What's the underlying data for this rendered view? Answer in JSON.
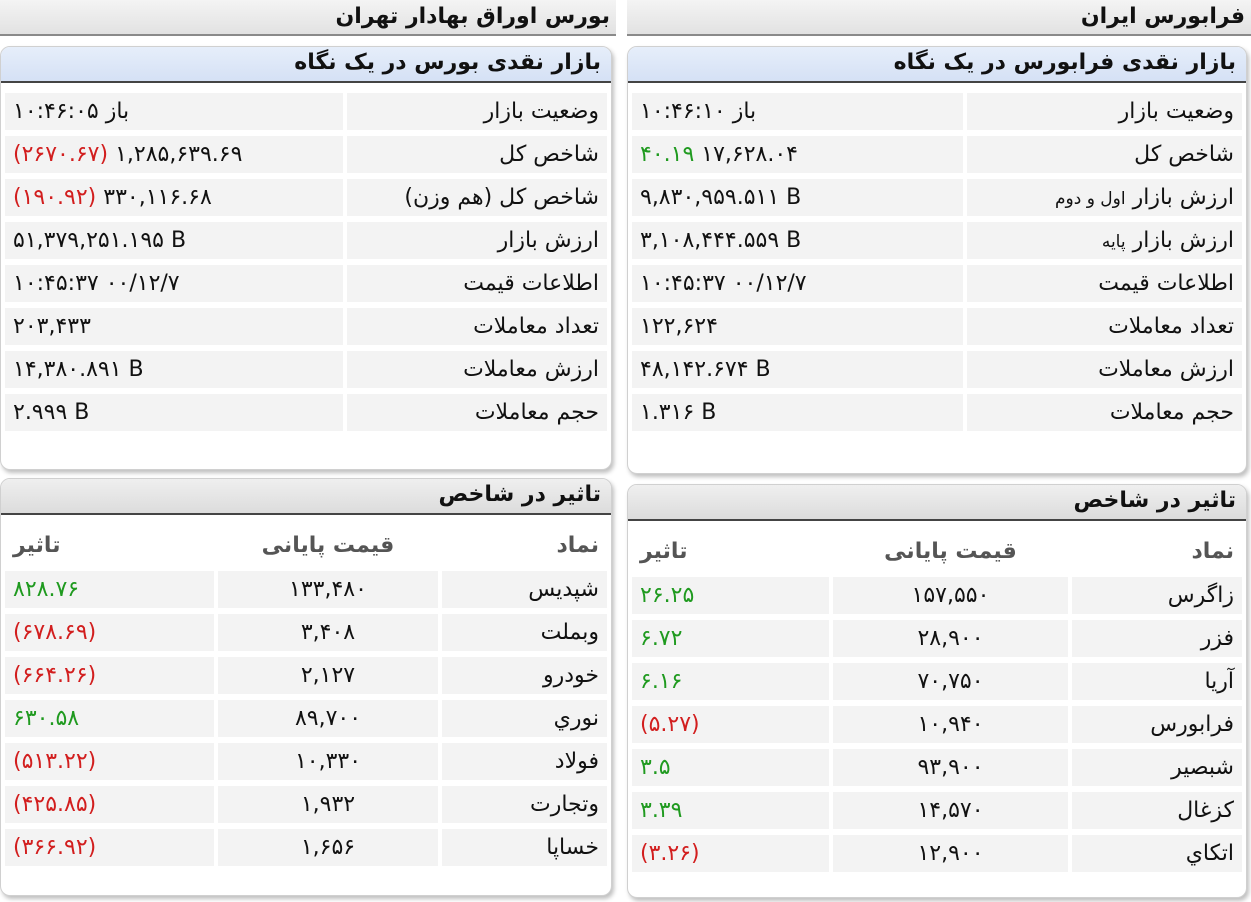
{
  "tehran": {
    "header": "بورس اوراق بهادار تهران",
    "summary_title": "بازار نقدی بورس در یک نگاه",
    "summary": {
      "status_label": "وضعیت بازار",
      "status_value": "باز ۱۰:۴۶:۰۵",
      "index_label": "شاخص کل",
      "index_value": "۱,۲۸۵,۶۳۹.۶۹",
      "index_change": "(۲۶۷۰.۶۷)",
      "eq_index_label": "شاخص کل (هم وزن)",
      "eq_index_value": "۳۳۰,۱۱۶.۶۸",
      "eq_index_change": "(۱۹۰.۹۲)",
      "market_value_label": "ارزش بازار",
      "market_value": "۵۱,۳۷۹,۲۵۱.۱۹۵ B",
      "price_info_label": "اطلاعات قیمت",
      "price_info_value": "۱۰:۴۵:۳۷ ۰۰/۱۲/۷",
      "trades_count_label": "تعداد معاملات",
      "trades_count": "۲۰۳,۴۳۳",
      "trades_value_label": "ارزش معاملات",
      "trades_value": "۱۴,۳۸۰.۸۹۱ B",
      "trades_volume_label": "حجم معاملات",
      "trades_volume": "۲.۹۹۹ B"
    },
    "impact_title": "تاثیر در شاخص",
    "impact_headers": {
      "symbol": "نماد",
      "price": "قیمت پایانی",
      "impact": "تاثیر"
    },
    "impact_rows": [
      {
        "symbol": "شپدیس",
        "price": "۱۳۳,۴۸۰",
        "impact": "۸۲۸.۷۶",
        "dir": "pos"
      },
      {
        "symbol": "وبملت",
        "price": "۳,۴۰۸",
        "impact": "(۶۷۸.۶۹)",
        "dir": "neg"
      },
      {
        "symbol": "خودرو",
        "price": "۲,۱۲۷",
        "impact": "(۶۶۴.۲۶)",
        "dir": "neg"
      },
      {
        "symbol": "نوري",
        "price": "۸۹,۷۰۰",
        "impact": "۶۳۰.۵۸",
        "dir": "pos"
      },
      {
        "symbol": "فولاد",
        "price": "۱۰,۳۳۰",
        "impact": "(۵۱۳.۲۲)",
        "dir": "neg"
      },
      {
        "symbol": "وتجارت",
        "price": "۱,۹۳۲",
        "impact": "(۴۲۵.۸۵)",
        "dir": "neg"
      },
      {
        "symbol": "خساپا",
        "price": "۱,۶۵۶",
        "impact": "(۳۶۶.۹۲)",
        "dir": "neg"
      }
    ]
  },
  "farabourse": {
    "header": "فرابورس ایران",
    "summary_title": "بازار نقدی فرابورس در یک نگاه",
    "summary": {
      "status_label": "وضعیت بازار",
      "status_value": "باز ۱۰:۴۶:۱۰",
      "index_label": "شاخص کل",
      "index_value": "۱۷,۶۲۸.۰۴",
      "index_change": "۴۰.۱۹",
      "mv12_label_main": "ارزش بازار",
      "mv12_label_sub": "اول و دوم",
      "mv12_value": "۹,۸۳۰,۹۵۹.۵۱۱ B",
      "mvbase_label_main": "ارزش بازار",
      "mvbase_label_sub": "پایه",
      "mvbase_value": "۳,۱۰۸,۴۴۴.۵۵۹ B",
      "price_info_label": "اطلاعات قیمت",
      "price_info_value": "۱۰:۴۵:۳۷ ۰۰/۱۲/۷",
      "trades_count_label": "تعداد معاملات",
      "trades_count": "۱۲۲,۶۲۴",
      "trades_value_label": "ارزش معاملات",
      "trades_value": "۴۸,۱۴۲.۶۷۴ B",
      "trades_volume_label": "حجم معاملات",
      "trades_volume": "۱.۳۱۶ B"
    },
    "impact_title": "تاثیر در شاخص",
    "impact_headers": {
      "symbol": "نماد",
      "price": "قیمت پایانی",
      "impact": "تاثیر"
    },
    "impact_rows": [
      {
        "symbol": "زاگرس",
        "price": "۱۵۷,۵۵۰",
        "impact": "۲۶.۲۵",
        "dir": "pos"
      },
      {
        "symbol": "فزر",
        "price": "۲۸,۹۰۰",
        "impact": "۶.۷۲",
        "dir": "pos"
      },
      {
        "symbol": "آريا",
        "price": "۷۰,۷۵۰",
        "impact": "۶.۱۶",
        "dir": "pos"
      },
      {
        "symbol": "فرابورس",
        "price": "۱۰,۹۴۰",
        "impact": "(۵.۲۷)",
        "dir": "neg"
      },
      {
        "symbol": "شبصير",
        "price": "۹۳,۹۰۰",
        "impact": "۳.۵",
        "dir": "pos"
      },
      {
        "symbol": "كزغال",
        "price": "۱۴,۵۷۰",
        "impact": "۳.۳۹",
        "dir": "pos"
      },
      {
        "symbol": "اتكاي",
        "price": "۱۲,۹۰۰",
        "impact": "(۳.۲۶)",
        "dir": "neg"
      }
    ]
  },
  "colors": {
    "positive": "#1f9a1f",
    "negative": "#d21e1e"
  }
}
